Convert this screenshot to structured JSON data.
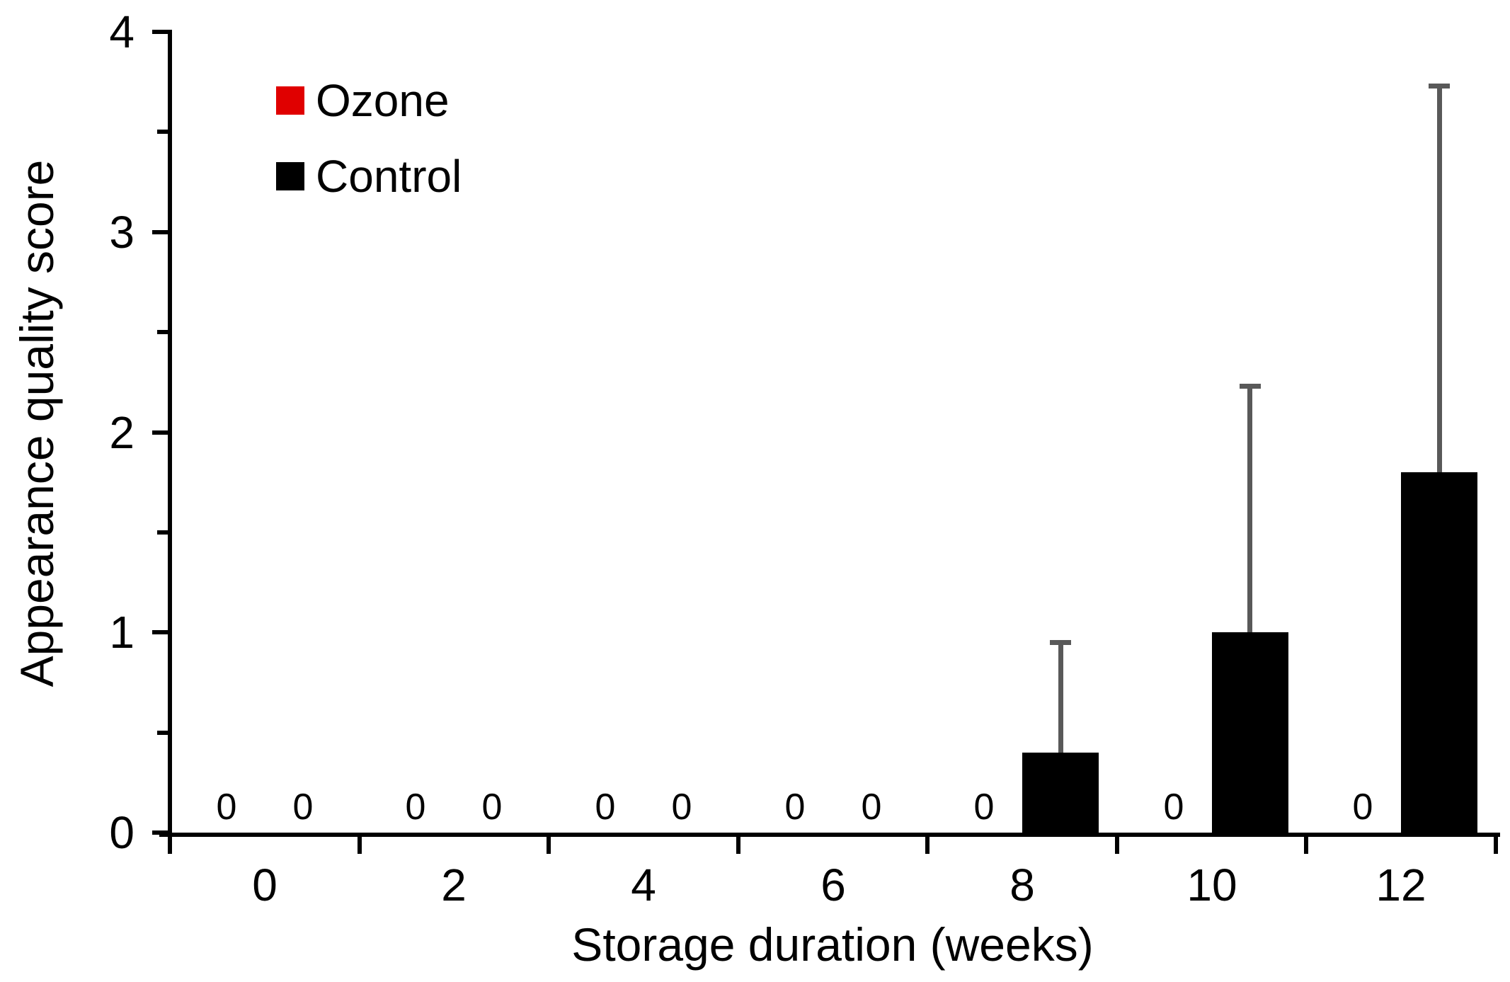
{
  "figure": {
    "background": "#ffffff",
    "axis_color": "#000000"
  },
  "chart_data": {
    "type": "bar",
    "title": "",
    "xlabel": "Storage duration (weeks)",
    "ylabel": "Appearance quality score",
    "categories": [
      "0",
      "2",
      "4",
      "6",
      "8",
      "10",
      "12"
    ],
    "ylim": [
      0,
      4
    ],
    "yticks": [
      "0",
      "1",
      "2",
      "3",
      "4"
    ],
    "ytick_minor_step": 0.5,
    "grid": false,
    "legend_position": "top-left-inside",
    "zero_value_label": "0",
    "error_bar_color": "#595959",
    "series": [
      {
        "name": "Ozone",
        "color": "#e00000",
        "values": [
          0,
          0,
          0,
          0,
          0,
          0,
          0
        ],
        "errors_plus": [
          0,
          0,
          0,
          0,
          0,
          0,
          0
        ]
      },
      {
        "name": "Control",
        "color": "#000000",
        "values": [
          0,
          0,
          0,
          0,
          0.4,
          1,
          1.8
        ],
        "errors_plus": [
          0,
          0,
          0,
          0,
          0.55,
          1.23,
          1.93
        ]
      }
    ]
  }
}
